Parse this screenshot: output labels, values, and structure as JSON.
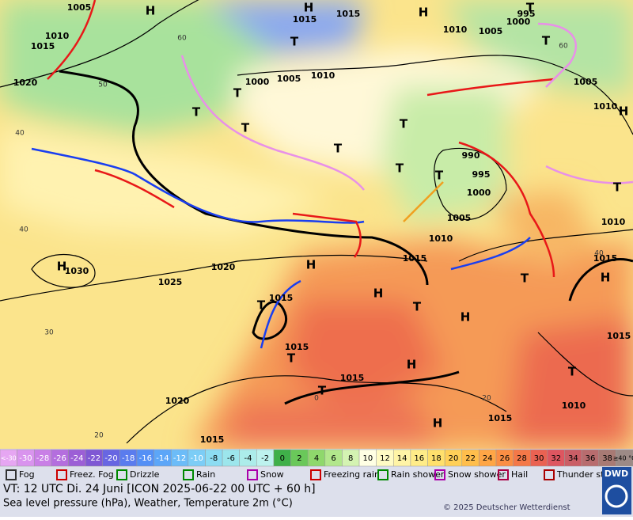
{
  "map": {
    "isobar_labels": [
      "1005",
      "1010",
      "1015",
      "1020",
      "1015",
      "1015",
      "1010",
      "1005",
      "1000",
      "995",
      "1000",
      "1005",
      "1010",
      "1005",
      "1010",
      "990",
      "995",
      "1000",
      "1005",
      "1010",
      "1015",
      "1010",
      "1015",
      "1015",
      "1020",
      "1030",
      "1025",
      "1015",
      "1015",
      "1015",
      "1020",
      "1015",
      "1010",
      "1015"
    ],
    "graticule_labels": [
      "60",
      "50",
      "40",
      "40",
      "30",
      "20",
      "60",
      "40",
      "20",
      "0"
    ],
    "pressure_centers": [
      "H",
      "H",
      "H",
      "T",
      "T",
      "T",
      "T",
      "T",
      "T",
      "T",
      "T",
      "T",
      "T",
      "H",
      "H",
      "H",
      "T",
      "H",
      "T",
      "T",
      "T",
      "H",
      "T",
      "H",
      "T",
      "H",
      "H",
      "T"
    ]
  },
  "scale": {
    "labels": [
      "<-30",
      "-30",
      "-28",
      "-26",
      "-24",
      "-22",
      "-20",
      "-18",
      "-16",
      "-14",
      "-12",
      "-10",
      "-8",
      "-6",
      "-4",
      "-2",
      "0",
      "2",
      "4",
      "6",
      "8",
      "10",
      "12",
      "14",
      "16",
      "18",
      "20",
      "22",
      "24",
      "26",
      "28",
      "30",
      "32",
      "34",
      "36",
      "38",
      "≥40 °C"
    ],
    "colors": [
      "#e6a6f2",
      "#d994ee",
      "#c97fe6",
      "#b46ede",
      "#9c5fd6",
      "#7f58d4",
      "#6866e2",
      "#5a7cee",
      "#5490f6",
      "#5ca6f8",
      "#6cbcf8",
      "#7ccdf6",
      "#8cdcf2",
      "#9ce6ec",
      "#acecea",
      "#bdf2ee",
      "#3fb049",
      "#6ac85a",
      "#8fd86c",
      "#b2e78c",
      "#d4f3b2",
      "#ffffe4",
      "#fffbc4",
      "#fff4a6",
      "#ffec88",
      "#ffe06c",
      "#ffd058",
      "#ffbe4c",
      "#ffa646",
      "#fb8e44",
      "#f47848",
      "#ea6252",
      "#de5660",
      "#ca5e66",
      "#b86c6e",
      "#a87a74",
      "#9c8a86"
    ]
  },
  "legend": {
    "items": [
      "Fog",
      "Freez. Fog",
      "Drizzle",
      "Rain",
      "Snow",
      "Freezing rain",
      "Rain shower",
      "Snow shower",
      "Hail",
      "Thunder storm"
    ]
  },
  "footer": {
    "valid_time": "VT: 12 UTC Di.  24 Juni [ICON 2025-06-22  00 UTC + 60 h]",
    "description": "Sea level pressure (hPa), Weather, Temperature 2m (°C)",
    "copyright": "© 2025 Deutscher Wetterdienst",
    "logo": "DWD"
  }
}
